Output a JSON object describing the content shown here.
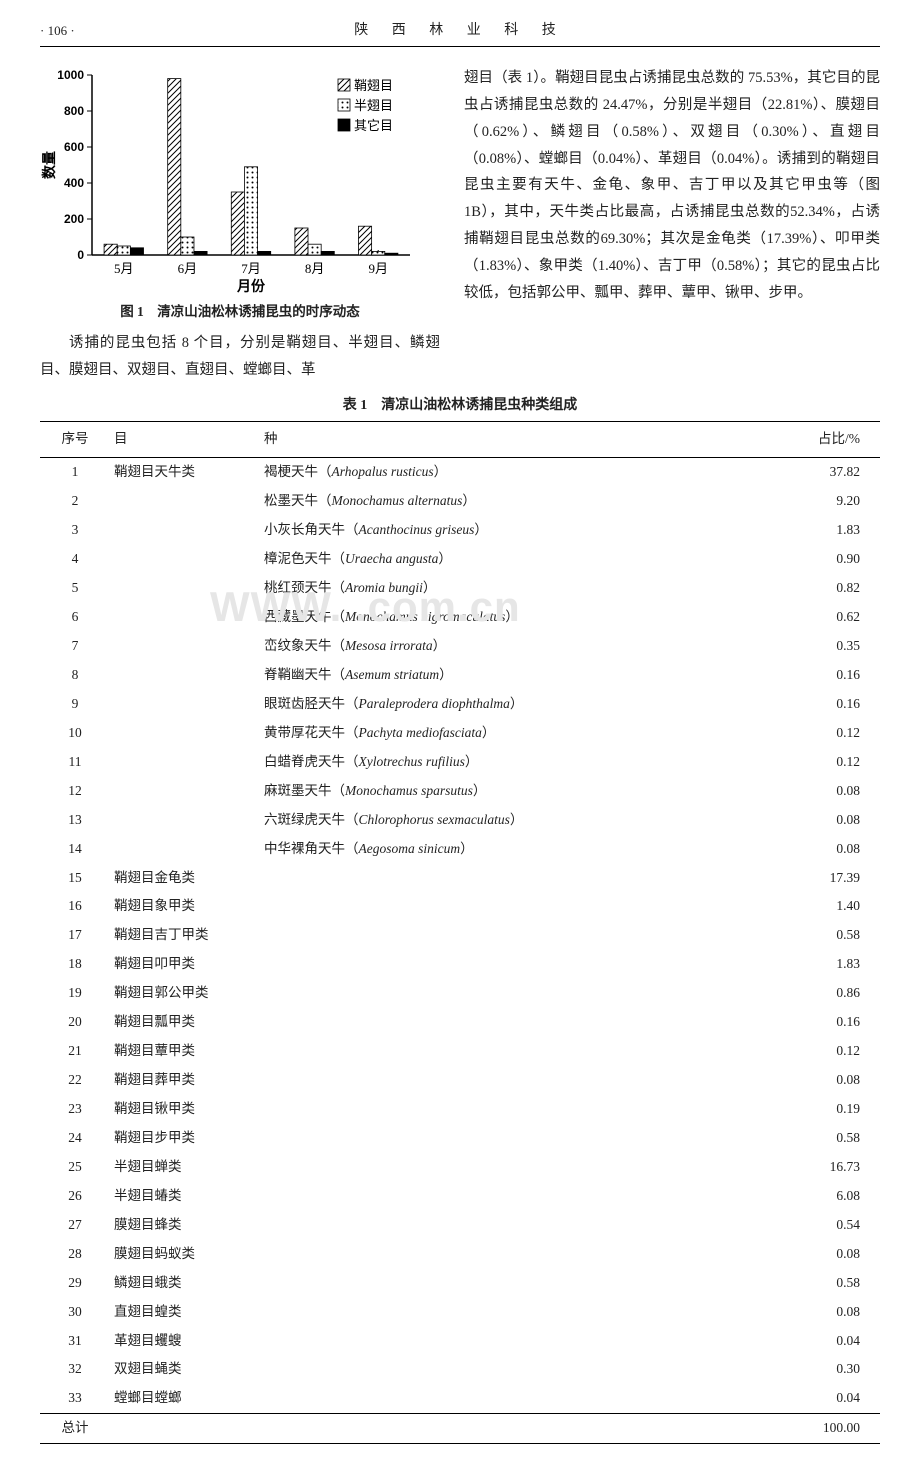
{
  "header": {
    "page_number": "· 106 ·",
    "journal": "陕 西 林 业 科 技"
  },
  "chart": {
    "type": "bar",
    "x_label": "月份",
    "y_label": "数量",
    "categories": [
      "5月",
      "6月",
      "7月",
      "8月",
      "9月"
    ],
    "series": [
      {
        "name": "鞘翅目",
        "values": [
          60,
          980,
          350,
          150,
          160
        ],
        "pattern": "diagonal"
      },
      {
        "name": "半翅目",
        "values": [
          50,
          100,
          490,
          60,
          20
        ],
        "pattern": "dots"
      },
      {
        "name": "其它目",
        "values": [
          40,
          20,
          20,
          20,
          10
        ],
        "pattern": "solid"
      }
    ],
    "ylim": [
      0,
      1000
    ],
    "ytick_step": 200,
    "colors": {
      "axis": "#000000",
      "background": "#ffffff"
    },
    "bar_width": 0.2,
    "axis_fontsize": 12,
    "label_fontsize": 13
  },
  "fig_caption": "图 1　清凉山油松林诱捕昆虫的时序动态",
  "left_para": "诱捕的昆虫包括 8 个目，分别是鞘翅目、半翅目、鳞翅目、膜翅目、双翅目、直翅目、螳螂目、革",
  "right_para": "翅目（表 1）。鞘翅目昆虫占诱捕昆虫总数的 75.53%，其它目的昆虫占诱捕昆虫总数的 24.47%，分别是半翅目（22.81%）、膜翅目（0.62%）、鳞翅目（0.58%）、双翅目（0.30%）、直翅目（0.08%）、螳螂目（0.04%）、革翅目（0.04%）。诱捕到的鞘翅目昆虫主要有天牛、金龟、象甲、吉丁甲以及其它甲虫等（图 1B），其中，天牛类占比最高，占诱捕昆虫总数的52.34%，占诱捕鞘翅目昆虫总数的69.30%；其次是金龟类（17.39%）、叩甲类（1.83%）、象甲类（1.40%）、吉丁甲（0.58%）；其它的昆虫占比较低，包括郭公甲、瓢甲、葬甲、蕈甲、锹甲、步甲。",
  "table": {
    "caption": "表 1　清凉山油松林诱捕昆虫种类组成",
    "columns": [
      "序号",
      "目",
      "种",
      "占比/%"
    ],
    "rows": [
      {
        "idx": "1",
        "order": "鞘翅目天牛类",
        "species_cn": "褐梗天牛",
        "species_la": "Arhopalus rusticus",
        "pct": "37.82"
      },
      {
        "idx": "2",
        "order": "",
        "species_cn": "松墨天牛",
        "species_la": "Monochamus alternatus",
        "pct": "9.20"
      },
      {
        "idx": "3",
        "order": "",
        "species_cn": "小灰长角天牛",
        "species_la": "Acanthocinus griseus",
        "pct": "1.83"
      },
      {
        "idx": "4",
        "order": "",
        "species_cn": "樟泥色天牛",
        "species_la": "Uraecha angusta",
        "pct": "0.90"
      },
      {
        "idx": "5",
        "order": "",
        "species_cn": "桃红颈天牛",
        "species_la": "Aromia bungii",
        "pct": "0.82"
      },
      {
        "idx": "6",
        "order": "",
        "species_cn": "西藏墨天牛",
        "species_la": "Monochamus nigromaculatus",
        "pct": "0.62"
      },
      {
        "idx": "7",
        "order": "",
        "species_cn": "峦纹象天牛",
        "species_la": "Mesosa irrorata",
        "pct": "0.35"
      },
      {
        "idx": "8",
        "order": "",
        "species_cn": "脊鞘幽天牛",
        "species_la": "Asemum striatum",
        "pct": "0.16"
      },
      {
        "idx": "9",
        "order": "",
        "species_cn": "眼斑齿胫天牛",
        "species_la": "Paraleprodera diophthalma",
        "pct": "0.16"
      },
      {
        "idx": "10",
        "order": "",
        "species_cn": "黄带厚花天牛",
        "species_la": "Pachyta mediofasciata",
        "pct": "0.12"
      },
      {
        "idx": "11",
        "order": "",
        "species_cn": "白蜡脊虎天牛",
        "species_la": "Xylotrechus rufilius",
        "pct": "0.12"
      },
      {
        "idx": "12",
        "order": "",
        "species_cn": "麻斑墨天牛",
        "species_la": "Monochamus sparsutus",
        "pct": "0.08"
      },
      {
        "idx": "13",
        "order": "",
        "species_cn": "六斑绿虎天牛",
        "species_la": "Chlorophorus sexmaculatus",
        "pct": "0.08"
      },
      {
        "idx": "14",
        "order": "",
        "species_cn": "中华裸角天牛",
        "species_la": "Aegosoma sinicum",
        "pct": "0.08"
      },
      {
        "idx": "15",
        "order": "鞘翅目金龟类",
        "species_cn": "",
        "species_la": "",
        "pct": "17.39"
      },
      {
        "idx": "16",
        "order": "鞘翅目象甲类",
        "species_cn": "",
        "species_la": "",
        "pct": "1.40"
      },
      {
        "idx": "17",
        "order": "鞘翅目吉丁甲类",
        "species_cn": "",
        "species_la": "",
        "pct": "0.58"
      },
      {
        "idx": "18",
        "order": "鞘翅目叩甲类",
        "species_cn": "",
        "species_la": "",
        "pct": "1.83"
      },
      {
        "idx": "19",
        "order": "鞘翅目郭公甲类",
        "species_cn": "",
        "species_la": "",
        "pct": "0.86"
      },
      {
        "idx": "20",
        "order": "鞘翅目瓢甲类",
        "species_cn": "",
        "species_la": "",
        "pct": "0.16"
      },
      {
        "idx": "21",
        "order": "鞘翅目蕈甲类",
        "species_cn": "",
        "species_la": "",
        "pct": "0.12"
      },
      {
        "idx": "22",
        "order": "鞘翅目葬甲类",
        "species_cn": "",
        "species_la": "",
        "pct": "0.08"
      },
      {
        "idx": "23",
        "order": "鞘翅目锹甲类",
        "species_cn": "",
        "species_la": "",
        "pct": "0.19"
      },
      {
        "idx": "24",
        "order": "鞘翅目步甲类",
        "species_cn": "",
        "species_la": "",
        "pct": "0.58"
      },
      {
        "idx": "25",
        "order": "半翅目蝉类",
        "species_cn": "",
        "species_la": "",
        "pct": "16.73"
      },
      {
        "idx": "26",
        "order": "半翅目蝽类",
        "species_cn": "",
        "species_la": "",
        "pct": "6.08"
      },
      {
        "idx": "27",
        "order": "膜翅目蜂类",
        "species_cn": "",
        "species_la": "",
        "pct": "0.54"
      },
      {
        "idx": "28",
        "order": "膜翅目蚂蚁类",
        "species_cn": "",
        "species_la": "",
        "pct": "0.08"
      },
      {
        "idx": "29",
        "order": "鳞翅目蛾类",
        "species_cn": "",
        "species_la": "",
        "pct": "0.58"
      },
      {
        "idx": "30",
        "order": "直翅目蝗类",
        "species_cn": "",
        "species_la": "",
        "pct": "0.08"
      },
      {
        "idx": "31",
        "order": "革翅目蠼螋",
        "species_cn": "",
        "species_la": "",
        "pct": "0.04"
      },
      {
        "idx": "32",
        "order": "双翅目蝇类",
        "species_cn": "",
        "species_la": "",
        "pct": "0.30"
      },
      {
        "idx": "33",
        "order": "螳螂目螳螂",
        "species_cn": "",
        "species_la": "",
        "pct": "0.04"
      }
    ],
    "total": {
      "label": "总计",
      "pct": "100.00"
    }
  },
  "watermark": "WWW.         .com.cn"
}
